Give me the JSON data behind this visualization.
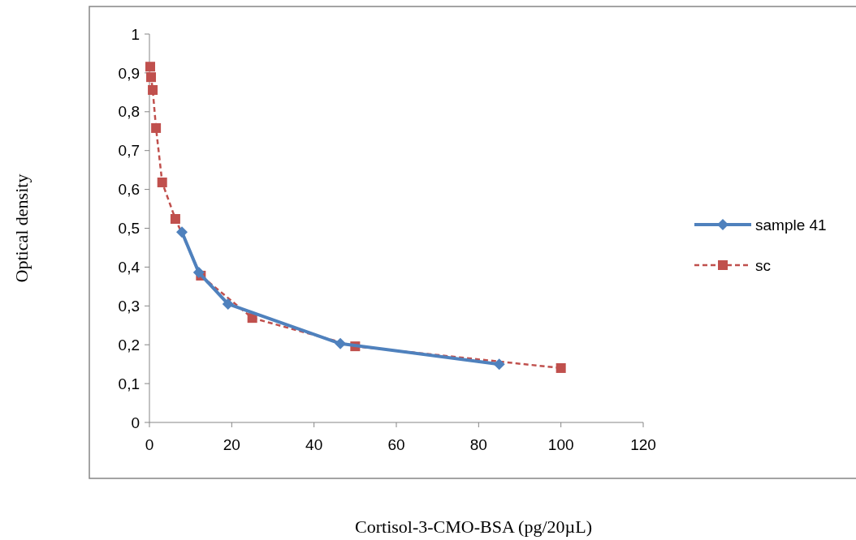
{
  "chart_data": {
    "type": "line",
    "xlabel": "Cortisol-3-CMO-BSA (pg/20µL)",
    "ylabel": "Optical density",
    "xlim": [
      0,
      120
    ],
    "xticks": [
      0,
      20,
      40,
      60,
      80,
      100,
      120
    ],
    "ylim": [
      0,
      1
    ],
    "yticks": [
      0,
      {
        "value": 0.1,
        "label": "0,1"
      },
      {
        "value": 0.2,
        "label": "0,2"
      },
      {
        "value": 0.3,
        "label": "0,3"
      },
      {
        "value": 0.4,
        "label": "0,4"
      },
      {
        "value": 0.5,
        "label": "0,5"
      },
      {
        "value": 0.6,
        "label": "0,6"
      },
      {
        "value": 0.7,
        "label": "0,7"
      },
      {
        "value": 0.8,
        "label": "0,8"
      },
      {
        "value": 0.9,
        "label": "0,9"
      },
      1
    ],
    "grid": false,
    "legend": "right",
    "series": [
      {
        "name": "sample 41",
        "color": "#4f81bd",
        "marker": "diamond",
        "line_style": "solid",
        "x": [
          7.9,
          12,
          19.1,
          46.4,
          85
        ],
        "values": [
          0.49,
          0.386,
          0.305,
          0.203,
          0.15
        ]
      },
      {
        "name": "sc",
        "color": "#c0504d",
        "marker": "square",
        "line_style": "dashed",
        "x": [
          0.2,
          0.4,
          0.8,
          1.6,
          3.1,
          6.3,
          12.5,
          25,
          50,
          100
        ],
        "values": [
          0.916,
          0.889,
          0.856,
          0.758,
          0.618,
          0.524,
          0.378,
          0.269,
          0.196,
          0.14
        ]
      }
    ]
  }
}
